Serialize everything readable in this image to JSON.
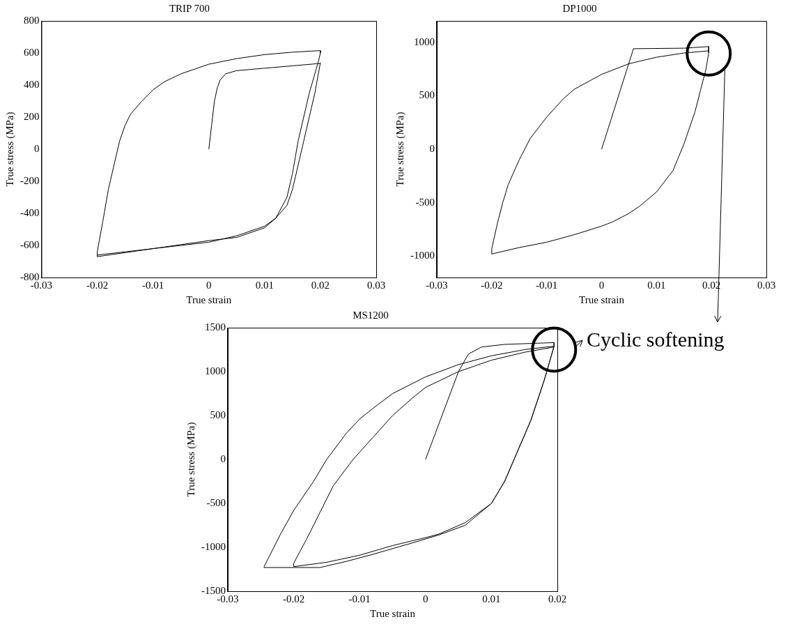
{
  "chart_data": [
    {
      "type": "line",
      "title": "TRIP 700",
      "xlabel": "True strain",
      "ylabel": "True stress (MPa)",
      "xlim": [
        -0.03,
        0.03
      ],
      "xticks": [
        -0.03,
        -0.02,
        -0.01,
        0,
        0.01,
        0.02,
        0.03
      ],
      "ylim": [
        -800,
        800
      ],
      "yticks": [
        -800,
        -600,
        -400,
        -200,
        0,
        200,
        400,
        600,
        800
      ],
      "marker": "none",
      "series": [
        {
          "color": "#000000",
          "x": [
            0,
            0.0005,
            0.001,
            0.0015,
            0.002,
            0.003,
            0.005,
            0.01,
            0.015,
            0.02
          ],
          "values": [
            0,
            150,
            300,
            380,
            430,
            470,
            490,
            505,
            520,
            535
          ]
        },
        {
          "color": "#000000",
          "x": [
            0.02,
            0.019,
            0.018,
            0.017,
            0.016,
            0.015,
            0.014,
            0.012,
            0.01,
            0.005,
            0,
            -0.005,
            -0.01,
            -0.015,
            -0.02,
            -0.02,
            -0.019,
            -0.018,
            -0.017,
            -0.016,
            -0.015,
            -0.014,
            -0.012,
            -0.01,
            -0.008,
            -0.005,
            0,
            0.005,
            0.01,
            0.015,
            0.02,
            0.02,
            0.0195,
            0.018,
            0.017,
            0.016,
            0.015,
            0.014,
            0.012,
            0.01,
            0.005,
            0,
            -0.01,
            -0.02
          ],
          "values": [
            540,
            350,
            200,
            50,
            -100,
            -250,
            -350,
            -430,
            -480,
            -540,
            -580,
            -600,
            -620,
            -645,
            -670,
            -640,
            -450,
            -250,
            -100,
            50,
            150,
            220,
            300,
            370,
            420,
            470,
            530,
            565,
            590,
            605,
            615,
            600,
            530,
            350,
            200,
            50,
            -150,
            -300,
            -430,
            -490,
            -550,
            -570,
            -620,
            -660
          ]
        }
      ]
    },
    {
      "type": "line",
      "title": "DP1000",
      "xlabel": "True strain",
      "ylabel": "True stress (MPa)",
      "xlim": [
        -0.03,
        0.03
      ],
      "xticks": [
        -0.03,
        -0.02,
        -0.01,
        0,
        0.01,
        0.02,
        0.03
      ],
      "ylim": [
        -1200,
        1200
      ],
      "yticks": [
        -1000,
        -500,
        0,
        500,
        1000
      ],
      "marker": "none",
      "annotations": [
        "Cyclic softening"
      ],
      "series": [
        {
          "color": "#000000",
          "x": [
            0,
            0.0058,
            0.015,
            0.0195
          ],
          "values": [
            0,
            940,
            945,
            960
          ]
        },
        {
          "color": "#000000",
          "x": [
            0.0195,
            0.0195,
            0.019,
            0.018,
            0.017,
            0.015,
            0.013,
            0.01,
            0.007,
            0.005,
            0.002,
            0,
            -0.005,
            -0.01,
            -0.015,
            -0.02,
            -0.02,
            -0.019,
            -0.018,
            -0.017,
            -0.015,
            -0.013,
            -0.01,
            -0.007,
            -0.005,
            0,
            0.005,
            0.01,
            0.015,
            0.0195
          ],
          "values": [
            960,
            900,
            750,
            550,
            350,
            50,
            -200,
            -400,
            -530,
            -600,
            -680,
            -720,
            -800,
            -870,
            -920,
            -980,
            -930,
            -700,
            -500,
            -330,
            -100,
            100,
            300,
            470,
            560,
            700,
            800,
            860,
            900,
            920
          ]
        }
      ]
    },
    {
      "type": "line",
      "title": "MS1200",
      "xlabel": "True strain",
      "ylabel": "True stress (MPa)",
      "xlim": [
        -0.03,
        0.02
      ],
      "xticks": [
        -0.03,
        -0.02,
        -0.01,
        0,
        0.01,
        0.02
      ],
      "ylim": [
        -1500,
        1500
      ],
      "yticks": [
        -1500,
        -1000,
        -500,
        0,
        500,
        1000,
        1500
      ],
      "marker": "none",
      "series": [
        {
          "color": "#000000",
          "x": [
            0,
            0.005,
            0.0065,
            0.0085,
            0.012,
            0.0195,
            0.0195,
            0.018,
            0.016,
            0.014,
            0.012,
            0.01,
            0.006,
            0.002,
            -0.002,
            -0.008,
            -0.012,
            -0.016,
            -0.0245,
            -0.0245,
            -0.022,
            -0.02,
            -0.017,
            -0.015,
            -0.012,
            -0.01,
            -0.008,
            -0.005,
            0,
            0.005,
            0.01,
            0.015,
            0.0195
          ],
          "values": [
            0,
            1000,
            1200,
            1280,
            1310,
            1330,
            1290,
            900,
            450,
            100,
            -250,
            -500,
            -750,
            -860,
            -950,
            -1080,
            -1160,
            -1230,
            -1230,
            -1220,
            -850,
            -580,
            -250,
            0,
            300,
            460,
            580,
            750,
            940,
            1080,
            1180,
            1250,
            1290
          ]
        },
        {
          "color": "#000000",
          "x": [
            0.0195,
            0.018,
            0.016,
            0.014,
            0.012,
            0.01,
            0.006,
            0.002,
            0,
            -0.005,
            -0.01,
            -0.015,
            -0.02,
            -0.02,
            -0.018,
            -0.016,
            -0.014,
            -0.011,
            -0.008,
            -0.005,
            -0.002,
            0,
            0.005,
            0.01,
            0.015,
            0.0195
          ],
          "values": [
            1290,
            900,
            450,
            100,
            -250,
            -500,
            -720,
            -850,
            -890,
            -980,
            -1090,
            -1170,
            -1220,
            -1180,
            -900,
            -600,
            -300,
            0,
            250,
            500,
            700,
            820,
            1000,
            1130,
            1220,
            1280
          ]
        }
      ]
    }
  ]
}
